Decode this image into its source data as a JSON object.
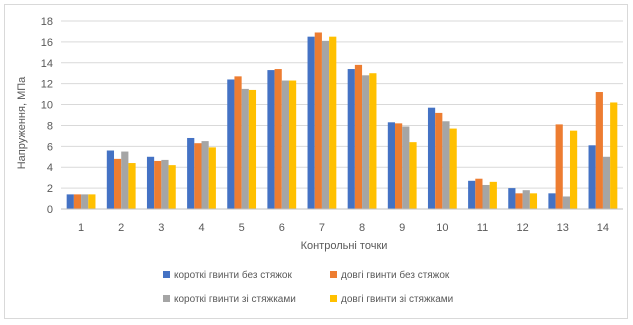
{
  "chart_data": {
    "type": "bar",
    "title": "",
    "xlabel": "Контрольні точки",
    "ylabel": "Напруження, МПа",
    "ylim": [
      0,
      18
    ],
    "yticks": [
      0,
      2,
      4,
      6,
      8,
      10,
      12,
      14,
      16,
      18
    ],
    "grid": true,
    "legend_position": "bottom",
    "categories": [
      "1",
      "2",
      "3",
      "4",
      "5",
      "6",
      "7",
      "8",
      "9",
      "10",
      "11",
      "12",
      "13",
      "14"
    ],
    "series": [
      {
        "name": "короткі гвинти без стяжок",
        "color": "#4472C4",
        "values": [
          1.4,
          5.6,
          5.0,
          6.8,
          12.4,
          13.3,
          16.5,
          13.4,
          8.3,
          9.7,
          2.7,
          2.0,
          1.5,
          6.1
        ]
      },
      {
        "name": "довгі гвинти без стяжок",
        "color": "#ED7D31",
        "values": [
          1.4,
          4.8,
          4.6,
          6.3,
          12.7,
          13.4,
          16.9,
          13.8,
          8.2,
          9.2,
          2.9,
          1.5,
          8.1,
          11.2
        ]
      },
      {
        "name": "короткі гвинти зі стяжками",
        "color": "#A5A5A5",
        "values": [
          1.4,
          5.5,
          4.7,
          6.5,
          11.5,
          12.3,
          16.1,
          12.8,
          7.9,
          8.4,
          2.3,
          1.8,
          1.2,
          5.0
        ]
      },
      {
        "name": "довгі гвинти зі стяжками",
        "color": "#FFC000",
        "values": [
          1.4,
          4.4,
          4.2,
          5.9,
          11.4,
          12.3,
          16.5,
          13.0,
          6.4,
          7.7,
          2.6,
          1.5,
          7.5,
          10.2
        ]
      }
    ]
  }
}
